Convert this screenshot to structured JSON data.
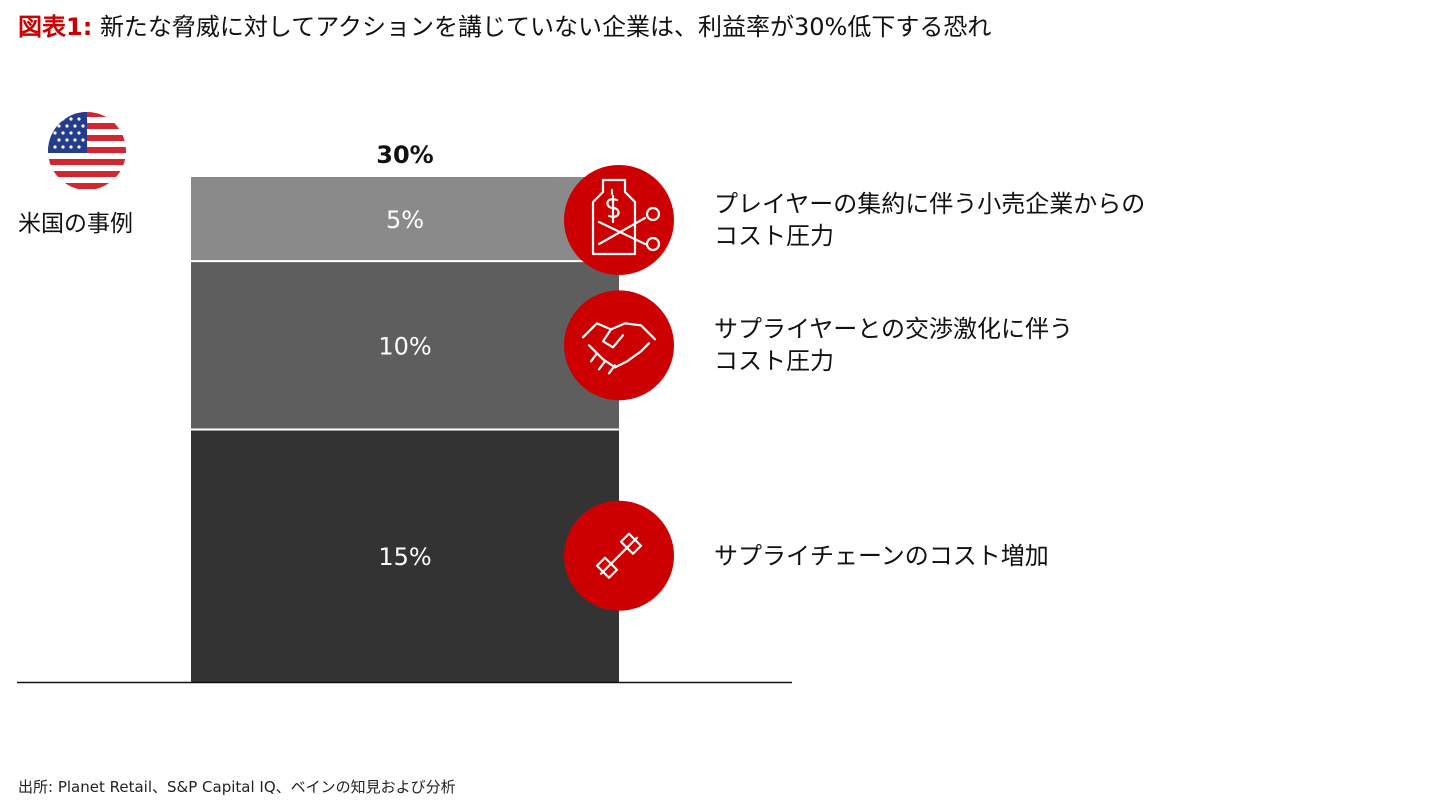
{
  "title": {
    "label": "図表1:",
    "text": "新たな脅威に対してアクションを講じていない企業は、利益率が30%低下する恐れ"
  },
  "region_label": "米国の事例",
  "flag_icon": "us-flag-icon",
  "colors": {
    "accent": "#cc0000",
    "segments": [
      "#333333",
      "#5e5e5e",
      "#8a8a8a"
    ]
  },
  "chart_data": {
    "type": "bar",
    "stacked": true,
    "categories": [
      "米国の事例"
    ],
    "total_label": "30%",
    "series": [
      {
        "name": "サプライチェーンのコスト増加",
        "values": [
          15
        ],
        "label": "15%",
        "icon": "chain-link-icon"
      },
      {
        "name": "サプライヤーとの交渉激化に伴うコスト圧力",
        "values": [
          10
        ],
        "label": "10%",
        "icon": "handshake-icon"
      },
      {
        "name": "プレイヤーの集約に伴う小売企業からのコスト圧力",
        "values": [
          5
        ],
        "label": "5%",
        "icon": "price-tag-scissors-icon"
      }
    ],
    "ylim": [
      0,
      30
    ],
    "grid": false
  },
  "reasons": [
    {
      "line1": "プレイヤーの集約に伴う小売企業からの",
      "line2": "コスト圧力"
    },
    {
      "line1": "サプライヤーとの交渉激化に伴う",
      "line2": "コスト圧力"
    },
    {
      "line1": "サプライチェーンのコスト増加",
      "line2": ""
    }
  ],
  "source": "出所: Planet Retail、S&P Capital IQ、ベインの知見および分析"
}
